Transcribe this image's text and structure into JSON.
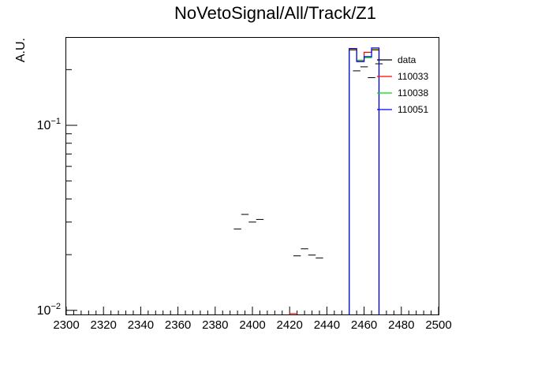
{
  "chart_data": {
    "type": "histogram",
    "title": "NoVetoSignal/All/Track/Z1",
    "xlabel": "",
    "ylabel": "A.U.",
    "xlim": [
      2300,
      2500
    ],
    "ylim": [
      0.0095,
      0.3
    ],
    "yscale": "log",
    "bin_width": 4,
    "grid": false,
    "legend_position": "top-right",
    "x_ticks": [
      "2300",
      "2320",
      "2340",
      "2360",
      "2380",
      "2400",
      "2420",
      "2440",
      "2460",
      "2480",
      "2500"
    ],
    "y_tick_labels": [
      {
        "base": "10",
        "exp": "−2",
        "value": 0.01
      },
      {
        "base": "10",
        "exp": "−1",
        "value": 0.1
      }
    ],
    "series": [
      {
        "name": "data",
        "color": "#000000",
        "style": "points",
        "points": [
          {
            "x": 2392,
            "y": 0.0275
          },
          {
            "x": 2396,
            "y": 0.033
          },
          {
            "x": 2400,
            "y": 0.03
          },
          {
            "x": 2404,
            "y": 0.031
          },
          {
            "x": 2424,
            "y": 0.0197
          },
          {
            "x": 2428,
            "y": 0.0215
          },
          {
            "x": 2432,
            "y": 0.0199
          },
          {
            "x": 2436,
            "y": 0.0192
          },
          {
            "x": 2456,
            "y": 0.197
          },
          {
            "x": 2460,
            "y": 0.207
          },
          {
            "x": 2464,
            "y": 0.181
          },
          {
            "x": 2468,
            "y": 0.215
          }
        ]
      },
      {
        "name": "110033",
        "color": "#ff0000",
        "style": "step",
        "bins": [
          {
            "x0": 2420,
            "x1": 2424,
            "y": 0.0096
          },
          {
            "x0": 2452,
            "x1": 2456,
            "y": 0.255
          },
          {
            "x0": 2456,
            "x1": 2460,
            "y": 0.222
          },
          {
            "x0": 2460,
            "x1": 2464,
            "y": 0.248
          },
          {
            "x0": 2464,
            "x1": 2468,
            "y": 0.255
          }
        ]
      },
      {
        "name": "110038",
        "color": "#00dd00",
        "style": "step",
        "bins": [
          {
            "x0": 2452,
            "x1": 2456,
            "y": 0.258
          },
          {
            "x0": 2456,
            "x1": 2460,
            "y": 0.225
          },
          {
            "x0": 2460,
            "x1": 2464,
            "y": 0.232
          },
          {
            "x0": 2464,
            "x1": 2468,
            "y": 0.258
          }
        ]
      },
      {
        "name": "110051",
        "color": "#0000ff",
        "style": "step",
        "bins": [
          {
            "x0": 2452,
            "x1": 2456,
            "y": 0.26
          },
          {
            "x0": 2456,
            "x1": 2460,
            "y": 0.221
          },
          {
            "x0": 2460,
            "x1": 2464,
            "y": 0.235
          },
          {
            "x0": 2464,
            "x1": 2468,
            "y": 0.262
          }
        ]
      }
    ]
  }
}
